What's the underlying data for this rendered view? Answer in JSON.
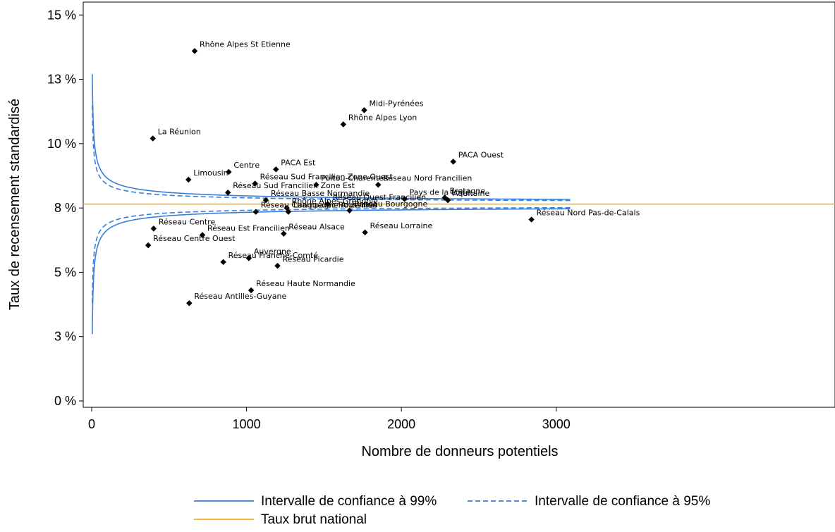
{
  "chart_data": {
    "type": "scatter",
    "title": "",
    "xlabel": "Nombre de donneurs potentiels",
    "ylabel": "Taux de recensement standardisé",
    "xlim": [
      0,
      4800
    ],
    "ylim": [
      0,
      15.5
    ],
    "x_ticks": [
      0,
      1000,
      2000,
      3000
    ],
    "x_tick_labels": [
      "0",
      "1000",
      "2000",
      "3000"
    ],
    "y_ticks": [
      0,
      2.5,
      5,
      7.5,
      10,
      12.5,
      15
    ],
    "y_tick_labels": [
      "0 %",
      "3 %",
      "5 %",
      "8 %",
      "10 %",
      "13 %",
      "15 %"
    ],
    "national_rate": 7.65,
    "confidence_bands": {
      "x_max": 3090,
      "z99": 2.576,
      "z95": 1.96,
      "k99": 10.1,
      "k95": 7.68
    },
    "colors": {
      "ci99": "#3a7dd8",
      "ci95": "#3a7dd8",
      "national": "#f0ac1c",
      "points": "#000000"
    },
    "legend": {
      "position": "bottom",
      "items": [
        {
          "label": "Intervalle de confiance à 99%",
          "style": "solid",
          "color": "#3a7dd8"
        },
        {
          "label": "Intervalle de confiance à 95%",
          "style": "dashed",
          "color": "#3a7dd8"
        },
        {
          "label": "Taux brut national",
          "style": "solid",
          "color": "#f0ac1c"
        }
      ]
    },
    "points": [
      {
        "label": "Rhône Alpes St Etienne",
        "x": 665,
        "y": 13.6
      },
      {
        "label": "Midi-Pyrénées",
        "x": 1760,
        "y": 11.3
      },
      {
        "label": "Rhône Alpes Lyon",
        "x": 1625,
        "y": 10.75
      },
      {
        "label": "La Réunion",
        "x": 395,
        "y": 10.2
      },
      {
        "label": "PACA Ouest",
        "x": 2335,
        "y": 9.3
      },
      {
        "label": "PACA Est",
        "x": 1190,
        "y": 9.0
      },
      {
        "label": "Centre",
        "x": 885,
        "y": 8.9
      },
      {
        "label": "Limousin",
        "x": 625,
        "y": 8.6
      },
      {
        "label": "Réseau Sud Francilien Zone Ouest",
        "x": 1055,
        "y": 8.45
      },
      {
        "label": "Poitou-Charentes",
        "x": 1450,
        "y": 8.4
      },
      {
        "label": "Réseau Nord Francilien",
        "x": 1850,
        "y": 8.4
      },
      {
        "label": "Réseau Sud Francilien Zone Est",
        "x": 880,
        "y": 8.1
      },
      {
        "label": "Réseau Basse Normandie",
        "x": 1125,
        "y": 7.8
      },
      {
        "label": "Pays de la Loire",
        "x": 2020,
        "y": 7.85
      },
      {
        "label": "Bretagne",
        "x": 2280,
        "y": 7.9
      },
      {
        "label": "Aquitaine",
        "x": 2300,
        "y": 7.8
      },
      {
        "label": "Rhône Alpes Grenoble",
        "x": 1260,
        "y": 7.5
      },
      {
        "label": "Réseau Ouest Francilien",
        "x": 1525,
        "y": 7.65
      },
      {
        "label": "Réseau Champagne Ardennes",
        "x": 1060,
        "y": 7.35
      },
      {
        "label": "Languedoc Roussillon",
        "x": 1270,
        "y": 7.35
      },
      {
        "label": "Réseau Bourgogne",
        "x": 1665,
        "y": 7.4
      },
      {
        "label": "Réseau Nord Pas-de-Calais",
        "x": 2840,
        "y": 7.05
      },
      {
        "label": "Réseau Centre",
        "x": 400,
        "y": 6.7
      },
      {
        "label": "Réseau Lorraine",
        "x": 1765,
        "y": 6.55
      },
      {
        "label": "Réseau Alsace",
        "x": 1240,
        "y": 6.5
      },
      {
        "label": "Réseau Est Francilien",
        "x": 715,
        "y": 6.45
      },
      {
        "label": "Réseau Centre Ouest",
        "x": 365,
        "y": 6.05
      },
      {
        "label": "Auvergne",
        "x": 1015,
        "y": 5.55
      },
      {
        "label": "Réseau Franche-Comté",
        "x": 850,
        "y": 5.4
      },
      {
        "label": "Réseau Picardie",
        "x": 1200,
        "y": 5.25
      },
      {
        "label": "Réseau Haute Normandie",
        "x": 1030,
        "y": 4.3
      },
      {
        "label": "Réseau Antilles-Guyane",
        "x": 630,
        "y": 3.8
      }
    ]
  }
}
